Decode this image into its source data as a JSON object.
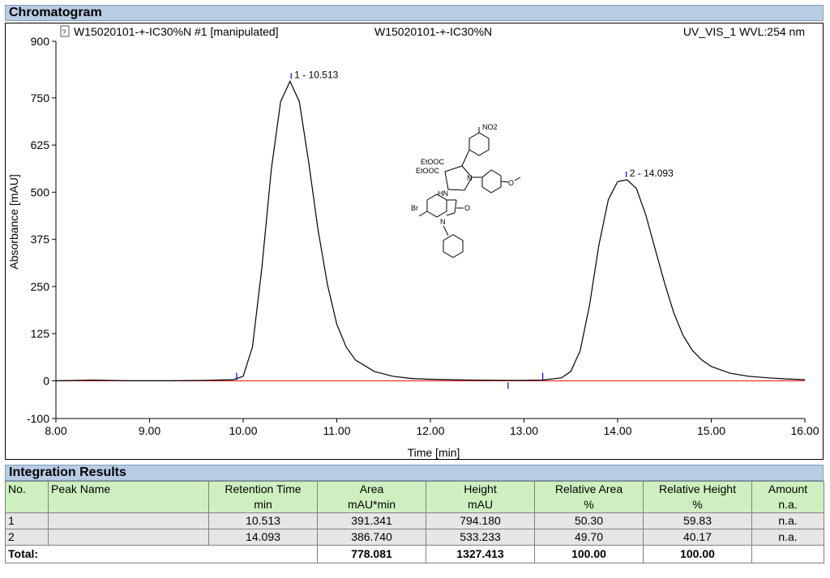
{
  "chromatogram": {
    "section_title": "Chromatogram",
    "header_left": "W15020101-+-IC30%N #1 [manipulated]",
    "header_center": "W15020101-+-IC30%N",
    "header_right": "UV_VIS_1 WVL:254 nm"
  },
  "chart_data": {
    "type": "line",
    "xlabel": "Time [min]",
    "ylabel": "Absorbance [mAU]",
    "xlim": [
      8.0,
      16.0
    ],
    "ylim": [
      -100,
      900
    ],
    "xticks": [
      "8.00",
      "9.00",
      "10.00",
      "11.00",
      "12.00",
      "13.00",
      "14.00",
      "15.00",
      "16.00"
    ],
    "yticks": [
      "-100",
      "0",
      "125",
      "250",
      "375",
      "500",
      "625",
      "750",
      "900"
    ],
    "series": [
      {
        "color": "#000000",
        "x": [
          8.0,
          8.4,
          8.8,
          9.2,
          9.6,
          9.9,
          10.0,
          10.1,
          10.2,
          10.3,
          10.4,
          10.5,
          10.6,
          10.7,
          10.8,
          10.9,
          11.0,
          11.1,
          11.2,
          11.4,
          11.6,
          11.8,
          12.0,
          12.4,
          12.8,
          13.0,
          13.2,
          13.4,
          13.5,
          13.6,
          13.7,
          13.8,
          13.9,
          14.0,
          14.1,
          14.2,
          14.3,
          14.4,
          14.5,
          14.6,
          14.7,
          14.8,
          14.9,
          15.0,
          15.2,
          15.4,
          15.6,
          15.8,
          16.0
        ],
        "y": [
          0,
          2,
          0,
          0,
          1,
          3,
          12,
          90,
          300,
          560,
          740,
          794,
          740,
          580,
          400,
          255,
          150,
          90,
          55,
          25,
          12,
          6,
          4,
          2,
          1,
          1,
          2,
          8,
          25,
          80,
          200,
          360,
          480,
          528,
          533,
          510,
          440,
          350,
          260,
          180,
          120,
          80,
          55,
          38,
          20,
          12,
          8,
          5,
          3
        ]
      }
    ],
    "baseline": {
      "color": "#ff0000",
      "x": [
        8.0,
        16.0
      ],
      "y": [
        0,
        0
      ]
    },
    "peaks": [
      {
        "label": "1 - 10.513",
        "x": 10.513,
        "y": 794.18
      },
      {
        "label": "2 - 14.093",
        "x": 14.093,
        "y": 533.233
      }
    ],
    "integration_marks": [
      {
        "x": 9.93,
        "y": 0
      },
      {
        "x": 12.83,
        "y": 0
      },
      {
        "x": 13.2,
        "y": 0
      }
    ],
    "structure_labels": [
      "NO2",
      "EtOOC",
      "EtOOC",
      "HN",
      "N",
      "O",
      "Br",
      "N",
      "O"
    ]
  },
  "integration": {
    "section_title": "Integration Results",
    "headers": {
      "no": "No.",
      "peak_name": "Peak Name",
      "rt": "Retention Time",
      "rt_unit": "min",
      "area": "Area",
      "area_unit": "mAU*min",
      "height": "Height",
      "height_unit": "mAU",
      "rel_area": "Relative Area",
      "rel_area_unit": "%",
      "rel_height": "Relative Height",
      "rel_height_unit": "%",
      "amount": "Amount",
      "amount_unit": "n.a."
    },
    "rows": [
      {
        "no": "1",
        "peak_name": "",
        "rt": "10.513",
        "area": "391.341",
        "height": "794.180",
        "rel_area": "50.30",
        "rel_height": "59.83",
        "amount": "n.a."
      },
      {
        "no": "2",
        "peak_name": "",
        "rt": "14.093",
        "area": "386.740",
        "height": "533.233",
        "rel_area": "49.70",
        "rel_height": "40.17",
        "amount": "n.a."
      }
    ],
    "total": {
      "label": "Total:",
      "area": "778.081",
      "height": "1327.413",
      "rel_area": "100.00",
      "rel_height": "100.00"
    }
  }
}
